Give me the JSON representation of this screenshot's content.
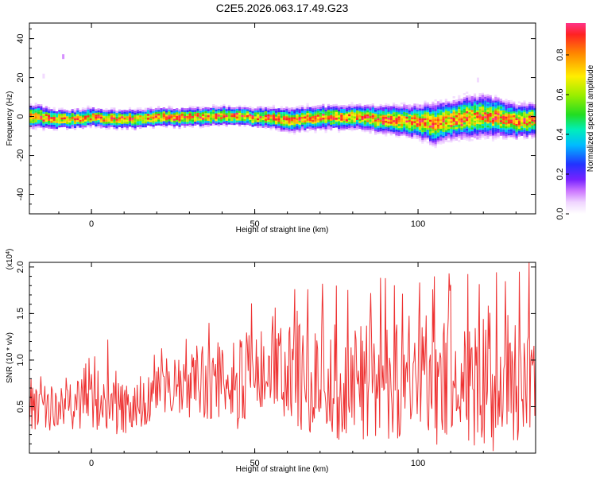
{
  "title": "C2E5.2026.063.17.49.G23",
  "chart_data": [
    {
      "type": "heatmap",
      "xlabel": "Height of straight line (km)",
      "ylabel": "Frequency (Hz)",
      "xlim": [
        -19,
        136
      ],
      "ylim": [
        -50,
        48
      ],
      "x_ticks": [
        "0",
        "50",
        "100"
      ],
      "y_ticks": [
        "40",
        "20",
        "0",
        "-20",
        "-40"
      ],
      "colorbar": {
        "label": "Normalized spectral amplitude",
        "ticks": [
          "0.0",
          "0.2",
          "0.4",
          "0.6",
          "0.8"
        ],
        "range": [
          0,
          0.96
        ]
      },
      "ridge": {
        "x": [
          -19,
          -10,
          0,
          10,
          20,
          30,
          40,
          50,
          60,
          70,
          80,
          90,
          100,
          105,
          110,
          115,
          120,
          125,
          130,
          136
        ],
        "frequency": [
          1,
          -1,
          0,
          -1,
          0,
          0,
          1,
          0,
          -1,
          0,
          0,
          -1,
          -2,
          -3,
          -1,
          0,
          1,
          0,
          -2,
          -1
        ],
        "band_halfwidth_hz": [
          5,
          4,
          4,
          4,
          4,
          4,
          4,
          4,
          5,
          5,
          5,
          6,
          7,
          9,
          8,
          9,
          9,
          8,
          7,
          7
        ]
      },
      "outliers": [
        {
          "x": -9,
          "frequency": 32,
          "amplitude": 0.1
        },
        {
          "x": -15,
          "frequency": 22,
          "amplitude": 0.05
        },
        {
          "x": 118,
          "frequency": 20,
          "amplitude": 0.05
        }
      ]
    },
    {
      "type": "line",
      "xlabel": "Height of straight line (km)",
      "ylabel": "SNR (10 * v/v)",
      "y_multiplier": "(x10^4)",
      "xlim": [
        -19,
        136
      ],
      "ylim": [
        0,
        2.05
      ],
      "x_ticks": [
        "0",
        "50",
        "100"
      ],
      "y_ticks": [
        "0.5",
        "1.0",
        "1.5",
        "2.0"
      ],
      "color": "#ee3333",
      "envelope": {
        "x": [
          -19,
          -10,
          0,
          10,
          20,
          30,
          40,
          50,
          60,
          70,
          80,
          90,
          100,
          110,
          120,
          130,
          136
        ],
        "mean": [
          0.45,
          0.5,
          0.55,
          0.45,
          0.65,
          0.7,
          0.8,
          0.75,
          0.8,
          0.8,
          0.75,
          0.8,
          0.8,
          0.75,
          0.75,
          0.8,
          0.8
        ],
        "spread": [
          0.25,
          0.25,
          0.3,
          0.3,
          0.3,
          0.35,
          0.5,
          0.55,
          0.6,
          0.6,
          0.65,
          0.65,
          0.7,
          0.7,
          0.75,
          0.75,
          0.65
        ]
      },
      "peaks": [
        {
          "x": 134,
          "y": 2.05
        },
        {
          "x": 131,
          "y": 1.95
        },
        {
          "x": 105,
          "y": 1.9
        },
        {
          "x": 90,
          "y": 1.88
        },
        {
          "x": 75,
          "y": 1.8
        },
        {
          "x": 36,
          "y": 1.4
        },
        {
          "x": 5,
          "y": 1.22
        }
      ]
    }
  ]
}
